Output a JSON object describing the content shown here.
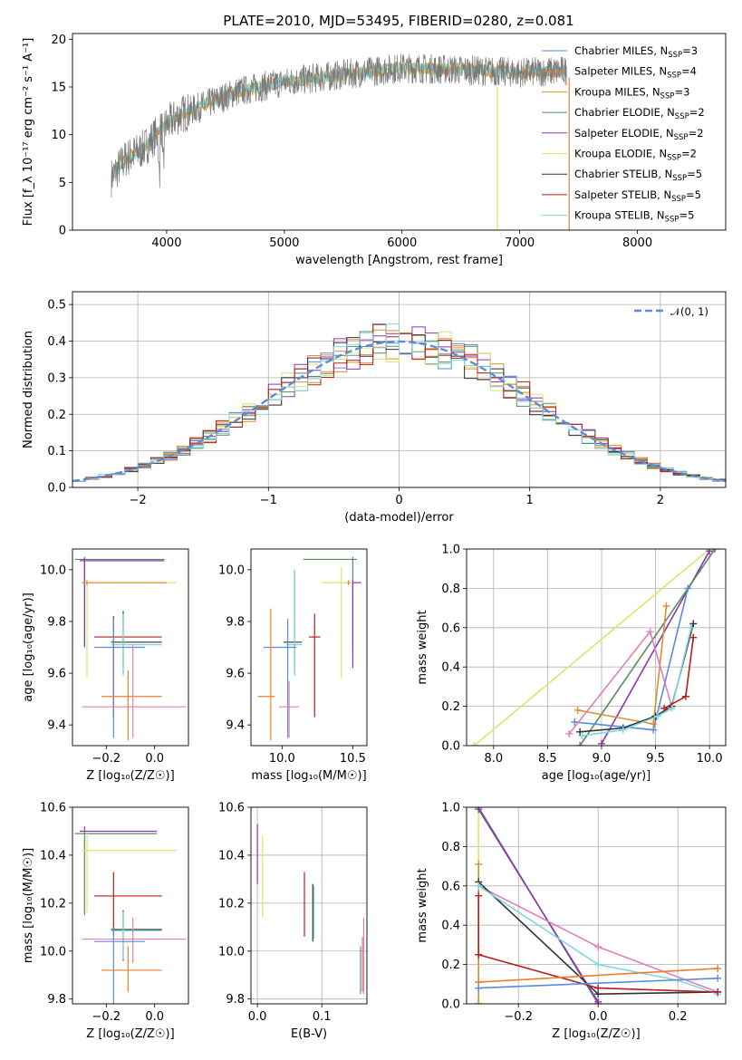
{
  "title": "PLATE=2010, MJD=53495, FIBERID=0280, z=0.081",
  "colors": {
    "chabrier_miles": "#5b8bd9",
    "salpeter_miles": "#ef7d2e",
    "kroupa_miles": "#d9902c",
    "chabrier_elodie": "#5a8a5a",
    "salpeter_elodie": "#8d36b3",
    "kroupa_elodie": "#d5e86a",
    "chabrier_stelib": "#333333",
    "salpeter_stelib": "#b81e1e",
    "kroupa_stelib": "#7fd8df",
    "pink": "#e37fb8",
    "data": "#7a7a7a",
    "gauss": "#5b8bd9"
  },
  "chart_data": [
    {
      "id": "spectrum",
      "type": "line",
      "xlabel": "wavelength [Angstrom, rest frame]",
      "ylabel": "Flux [f_λ 10⁻¹⁷ erg cm⁻² s⁻¹ A⁻¹]",
      "xlim": [
        3200,
        8750
      ],
      "ylim": [
        0,
        20.6
      ],
      "xticks": [
        4000,
        5000,
        6000,
        7000,
        8000
      ],
      "yticks": [
        0,
        5,
        10,
        15,
        20
      ],
      "grid": false,
      "legend_position": "right",
      "legend": [
        {
          "label": "Chabrier MILES, N",
          "sub": "SSP",
          "suffix": "=3",
          "color_key": "chabrier_miles"
        },
        {
          "label": "Salpeter MILES, N",
          "sub": "SSP",
          "suffix": "=4",
          "color_key": "salpeter_miles"
        },
        {
          "label": "Kroupa MILES, N",
          "sub": "SSP",
          "suffix": "=3",
          "color_key": "kroupa_miles"
        },
        {
          "label": "Chabrier ELODIE, N",
          "sub": "SSP",
          "suffix": "=2",
          "color_key": "chabrier_elodie"
        },
        {
          "label": "Salpeter ELODIE, N",
          "sub": "SSP",
          "suffix": "=2",
          "color_key": "salpeter_elodie"
        },
        {
          "label": "Kroupa ELODIE, N",
          "sub": "SSP",
          "suffix": "=2",
          "color_key": "kroupa_elodie"
        },
        {
          "label": "Chabrier STELIB, N",
          "sub": "SSP",
          "suffix": "=5",
          "color_key": "chabrier_stelib"
        },
        {
          "label": "Salpeter STELIB, N",
          "sub": "SSP",
          "suffix": "=5",
          "color_key": "salpeter_stelib"
        },
        {
          "label": "Kroupa STELIB, N",
          "sub": "SSP",
          "suffix": "=5",
          "color_key": "kroupa_stelib"
        }
      ],
      "continuum": [
        [
          3530,
          5.5
        ],
        [
          3650,
          7.5
        ],
        [
          3800,
          8.5
        ],
        [
          3950,
          10.5
        ],
        [
          4100,
          12.0
        ],
        [
          4300,
          13.0
        ],
        [
          4600,
          14.5
        ],
        [
          5000,
          15.5
        ],
        [
          5500,
          16.3
        ],
        [
          6000,
          17.0
        ],
        [
          6500,
          16.8
        ],
        [
          7000,
          16.5
        ],
        [
          7400,
          16.7
        ]
      ]
    },
    {
      "id": "residual_hist",
      "type": "line",
      "xlabel": "(data-model)/error",
      "ylabel": "Normed distribution",
      "xlim": [
        -2.5,
        2.5
      ],
      "ylim": [
        0,
        0.535
      ],
      "xticks": [
        -2,
        -1,
        0,
        1,
        2
      ],
      "yticks": [
        0.0,
        0.1,
        0.2,
        0.3,
        0.4,
        0.5
      ],
      "grid": true,
      "legend_position": "top-right",
      "gauss_label": "𝒩(0, 1)",
      "bin_width": 0.1
    },
    {
      "id": "age_vs_Z",
      "type": "scatter",
      "xlabel": "Z [log₁₀(Z/Z☉)]",
      "ylabel": "age [log₁₀(age/yr)]",
      "xlim": [
        -0.34,
        0.14
      ],
      "ylim": [
        9.32,
        10.08
      ],
      "xticks": [
        -0.2,
        0.0
      ],
      "yticks": [
        9.4,
        9.6,
        9.8,
        10.0
      ],
      "grid": false,
      "points": [
        {
          "c": "chabrier_elodie",
          "x": -0.29,
          "xerr": [
            0.04,
            0.33
          ],
          "y": 10.04,
          "yerr": [
            0.34,
            0.01
          ]
        },
        {
          "c": "salpeter_elodie",
          "x": -0.29,
          "xerr": [
            0.02,
            0.33
          ],
          "y": 10.035,
          "yerr": [
            0.33,
            0.01
          ]
        },
        {
          "c": "kroupa_elodie",
          "x": -0.28,
          "xerr": [
            0.02,
            0.37
          ],
          "y": 9.95,
          "yerr": [
            0.37,
            0.01
          ]
        },
        {
          "c": "kroupa_miles",
          "x": -0.28,
          "xerr": [
            0.02,
            0.33
          ],
          "y": 9.95,
          "yerr": [
            0.01,
            0.01
          ]
        },
        {
          "c": "salpeter_stelib",
          "x": -0.17,
          "xerr": [
            0.08,
            0.2
          ],
          "y": 9.74,
          "yerr": [
            0.31,
            0.08
          ]
        },
        {
          "c": "chabrier_stelib",
          "x": -0.13,
          "xerr": [
            0.05,
            0.16
          ],
          "y": 9.72,
          "yerr": [
            0.12,
            0.12
          ]
        },
        {
          "c": "kroupa_stelib",
          "x": -0.13,
          "xerr": [
            0.05,
            0.16
          ],
          "y": 9.71,
          "yerr": [
            0.12,
            0.12
          ]
        },
        {
          "c": "chabrier_miles",
          "x": -0.17,
          "xerr": [
            0.08,
            0.13
          ],
          "y": 9.7,
          "yerr": [
            0.35,
            0.11
          ]
        },
        {
          "c": "salpeter_miles",
          "x": -0.11,
          "xerr": [
            0.11,
            0.14
          ],
          "y": 9.51,
          "yerr": [
            0.17,
            0.1
          ]
        },
        {
          "c": "pink",
          "x": -0.09,
          "xerr": [
            0.21,
            0.22
          ],
          "y": 9.47,
          "yerr": [
            0.12,
            0.24
          ]
        }
      ]
    },
    {
      "id": "age_vs_mass",
      "type": "scatter",
      "xlabel": "mass [log₁₀(M/M☉)]",
      "ylabel": "",
      "xlim": [
        9.78,
        10.6
      ],
      "ylim": [
        9.32,
        10.08
      ],
      "xticks": [
        10.0,
        10.5
      ],
      "yticks": [
        9.4,
        9.6,
        9.8,
        10.0
      ],
      "grid": false,
      "points": [
        {
          "c": "chabrier_elodie",
          "x": 10.5,
          "xerr": [
            0.35,
            0.03
          ],
          "y": 10.04,
          "yerr": [
            0.34,
            0.01
          ]
        },
        {
          "c": "salpeter_elodie",
          "x": 10.5,
          "xerr": [
            0.0,
            0.06
          ],
          "y": 9.95,
          "yerr": [
            0.33,
            0.01
          ]
        },
        {
          "c": "kroupa_elodie",
          "x": 10.42,
          "xerr": [
            0.14,
            0.07
          ],
          "y": 9.95,
          "yerr": [
            0.37,
            0.06
          ]
        },
        {
          "c": "kroupa_miles",
          "x": 10.47,
          "xerr": [
            0.01,
            0.01
          ],
          "y": 9.95,
          "yerr": [
            0.01,
            0.01
          ]
        },
        {
          "c": "salpeter_stelib",
          "x": 10.23,
          "xerr": [
            0.04,
            0.04
          ],
          "y": 9.74,
          "yerr": [
            0.31,
            0.09
          ]
        },
        {
          "c": "chabrier_stelib",
          "x": 10.09,
          "xerr": [
            0.08,
            0.05
          ],
          "y": 9.72,
          "yerr": [
            0.12,
            0.28
          ]
        },
        {
          "c": "kroupa_stelib",
          "x": 10.09,
          "xerr": [
            0.06,
            0.05
          ],
          "y": 9.71,
          "yerr": [
            0.12,
            0.29
          ]
        },
        {
          "c": "chabrier_miles",
          "x": 10.04,
          "xerr": [
            0.17,
            0.06
          ],
          "y": 9.7,
          "yerr": [
            0.35,
            0.11
          ]
        },
        {
          "c": "salpeter_miles",
          "x": 9.92,
          "xerr": [
            0.09,
            0.03
          ],
          "y": 9.51,
          "yerr": [
            0.17,
            0.34
          ]
        },
        {
          "c": "pink",
          "x": 10.05,
          "xerr": [
            0.07,
            0.07
          ],
          "y": 9.47,
          "yerr": [
            0.12,
            0.1
          ]
        }
      ]
    },
    {
      "id": "mass_weight_vs_age",
      "type": "line",
      "xlabel": "age [log₁₀(age/yr)]",
      "ylabel": "mass weight",
      "xlim": [
        7.75,
        10.15
      ],
      "ylim": [
        0,
        1
      ],
      "xticks": [
        8.0,
        8.5,
        9.0,
        9.5,
        10.0
      ],
      "yticks": [
        0.0,
        0.2,
        0.4,
        0.6,
        0.8,
        1.0
      ],
      "grid": true,
      "series": [
        {
          "c": "kroupa_elodie",
          "x": [
            7.82,
            10.0
          ],
          "y": [
            0.0,
            1.0
          ]
        },
        {
          "c": "salpeter_elodie",
          "x": [
            9.0,
            10.0
          ],
          "y": [
            0.01,
            0.99
          ]
        },
        {
          "c": "chabrier_elodie",
          "x": [
            8.8,
            10.05
          ],
          "y": [
            0.0,
            1.0
          ]
        },
        {
          "c": "chabrier_miles",
          "x": [
            8.75,
            9.48,
            9.8
          ],
          "y": [
            0.12,
            0.08,
            0.8
          ]
        },
        {
          "c": "kroupa_miles",
          "x": [
            8.78,
            9.48,
            9.6
          ],
          "y": [
            0.18,
            0.11,
            0.71
          ]
        },
        {
          "c": "pink",
          "x": [
            8.7,
            9.45,
            9.65
          ],
          "y": [
            0.06,
            0.58,
            0.2
          ]
        },
        {
          "c": "chabrier_stelib",
          "x": [
            8.8,
            9.2,
            9.5,
            9.65,
            9.85
          ],
          "y": [
            0.07,
            0.09,
            0.15,
            0.2,
            0.62
          ]
        },
        {
          "c": "kroupa_stelib",
          "x": [
            8.82,
            9.2,
            9.52,
            9.65,
            9.83
          ],
          "y": [
            0.05,
            0.08,
            0.15,
            0.19,
            0.6
          ]
        },
        {
          "c": "salpeter_stelib",
          "x": [
            9.58,
            9.78,
            9.85
          ],
          "y": [
            0.19,
            0.25,
            0.55
          ]
        }
      ]
    },
    {
      "id": "mass_vs_Z",
      "type": "scatter",
      "xlabel": "Z [log₁₀(Z/Z☉)]",
      "ylabel": "mass [log₁₀(M/M☉)]",
      "xlim": [
        -0.34,
        0.14
      ],
      "ylim": [
        9.78,
        10.6
      ],
      "xticks": [
        -0.2,
        0.0
      ],
      "yticks": [
        9.8,
        10.0,
        10.2,
        10.4,
        10.6
      ],
      "grid": false,
      "points": [
        {
          "c": "salpeter_elodie",
          "x": -0.29,
          "xerr": [
            0.02,
            0.3
          ],
          "y": 10.5,
          "yerr": [
            0.0,
            0.02
          ]
        },
        {
          "c": "chabrier_elodie",
          "x": -0.29,
          "xerr": [
            0.04,
            0.3
          ],
          "y": 10.49,
          "yerr": [
            0.34,
            0.01
          ]
        },
        {
          "c": "kroupa_elodie",
          "x": -0.28,
          "xerr": [
            0.02,
            0.37
          ],
          "y": 10.42,
          "yerr": [
            0.26,
            0.07
          ]
        },
        {
          "c": "salpeter_stelib",
          "x": -0.17,
          "xerr": [
            0.08,
            0.2
          ],
          "y": 10.23,
          "yerr": [
            0.16,
            0.1
          ]
        },
        {
          "c": "chabrier_stelib",
          "x": -0.13,
          "xerr": [
            0.05,
            0.16
          ],
          "y": 10.09,
          "yerr": [
            0.13,
            0.08
          ]
        },
        {
          "c": "kroupa_stelib",
          "x": -0.13,
          "xerr": [
            0.05,
            0.16
          ],
          "y": 10.085,
          "yerr": [
            0.12,
            0.08
          ]
        },
        {
          "c": "pink",
          "x": -0.09,
          "xerr": [
            0.21,
            0.22
          ],
          "y": 10.05,
          "yerr": [
            0.1,
            0.09
          ]
        },
        {
          "c": "chabrier_miles",
          "x": -0.17,
          "xerr": [
            0.08,
            0.13
          ],
          "y": 10.04,
          "yerr": [
            0.27,
            0.06
          ]
        },
        {
          "c": "salpeter_miles",
          "x": -0.11,
          "xerr": [
            0.11,
            0.14
          ],
          "y": 9.92,
          "yerr": [
            0.09,
            0.1
          ]
        }
      ]
    },
    {
      "id": "mass_vs_ebv",
      "type": "scatter",
      "xlabel": "E(B-V)",
      "ylabel": "",
      "xlim": [
        -0.01,
        0.17
      ],
      "ylim": [
        9.78,
        10.6
      ],
      "xticks": [
        0.0,
        0.1
      ],
      "yticks": [
        9.8,
        10.0,
        10.2,
        10.4,
        10.6
      ],
      "grid": true,
      "points": [
        {
          "c": "salpeter_elodie",
          "x": 0.0,
          "y": 10.41,
          "yerr": [
            0.13,
            0.12
          ]
        },
        {
          "c": "kroupa_elodie",
          "x": 0.008,
          "y": 10.31,
          "yerr": [
            0.17,
            0.17
          ]
        },
        {
          "c": "salpeter_stelib",
          "x": 0.073,
          "y": 10.2,
          "yerr": [
            0.14,
            0.13
          ]
        },
        {
          "c": "chabrier_stelib",
          "x": 0.086,
          "y": 10.16,
          "yerr": [
            0.12,
            0.12
          ]
        },
        {
          "c": "kroupa_stelib",
          "x": 0.088,
          "y": 10.16,
          "yerr": [
            0.11,
            0.11
          ]
        },
        {
          "c": "chabrier_miles",
          "x": 0.16,
          "y": 9.92,
          "yerr": [
            0.1,
            0.1
          ]
        },
        {
          "c": "salpeter_miles",
          "x": 0.163,
          "y": 9.95,
          "yerr": [
            0.12,
            0.11
          ]
        },
        {
          "c": "pink",
          "x": 0.165,
          "y": 9.98,
          "yerr": [
            0.16,
            0.16
          ]
        }
      ]
    },
    {
      "id": "mass_weight_vs_Z",
      "type": "line",
      "xlabel": "Z [log₁₀(Z/Z☉)]",
      "ylabel": "mass weight",
      "xlim": [
        -0.33,
        0.32
      ],
      "ylim": [
        0,
        1
      ],
      "xticks": [
        -0.2,
        0.0,
        0.2
      ],
      "yticks": [
        0.0,
        0.2,
        0.4,
        0.6,
        0.8,
        1.0
      ],
      "grid": true,
      "series": [
        {
          "c": "kroupa_elodie",
          "x": [
            -0.3,
            -0.3
          ],
          "y": [
            0.0,
            1.0
          ]
        },
        {
          "c": "kroupa_miles",
          "x": [
            -0.3,
            -0.3
          ],
          "y": [
            0.0,
            0.71
          ]
        },
        {
          "c": "chabrier_elodie",
          "x": [
            -0.3,
            0.0
          ],
          "y": [
            1.0,
            0.0
          ]
        },
        {
          "c": "salpeter_elodie",
          "x": [
            -0.3,
            0.0
          ],
          "y": [
            0.99,
            0.01
          ]
        },
        {
          "c": "pink",
          "x": [
            -0.3,
            0.0,
            0.3
          ],
          "y": [
            0.6,
            0.29,
            0.06
          ]
        },
        {
          "c": "chabrier_stelib",
          "x": [
            -0.3,
            0.0,
            0.3
          ],
          "y": [
            0.62,
            0.05,
            0.06
          ]
        },
        {
          "c": "kroupa_stelib",
          "x": [
            -0.3,
            0.0,
            0.2,
            0.3
          ],
          "y": [
            0.6,
            0.2,
            0.12,
            0.05
          ]
        },
        {
          "c": "salpeter_stelib",
          "x": [
            -0.3,
            -0.3,
            0.0,
            0.3
          ],
          "y": [
            0.55,
            0.25,
            0.08,
            0.06
          ]
        },
        {
          "c": "salpeter_miles",
          "x": [
            -0.3,
            0.3
          ],
          "y": [
            0.11,
            0.18
          ]
        },
        {
          "c": "chabrier_miles",
          "x": [
            -0.3,
            0.3
          ],
          "y": [
            0.08,
            0.13
          ]
        }
      ]
    }
  ]
}
